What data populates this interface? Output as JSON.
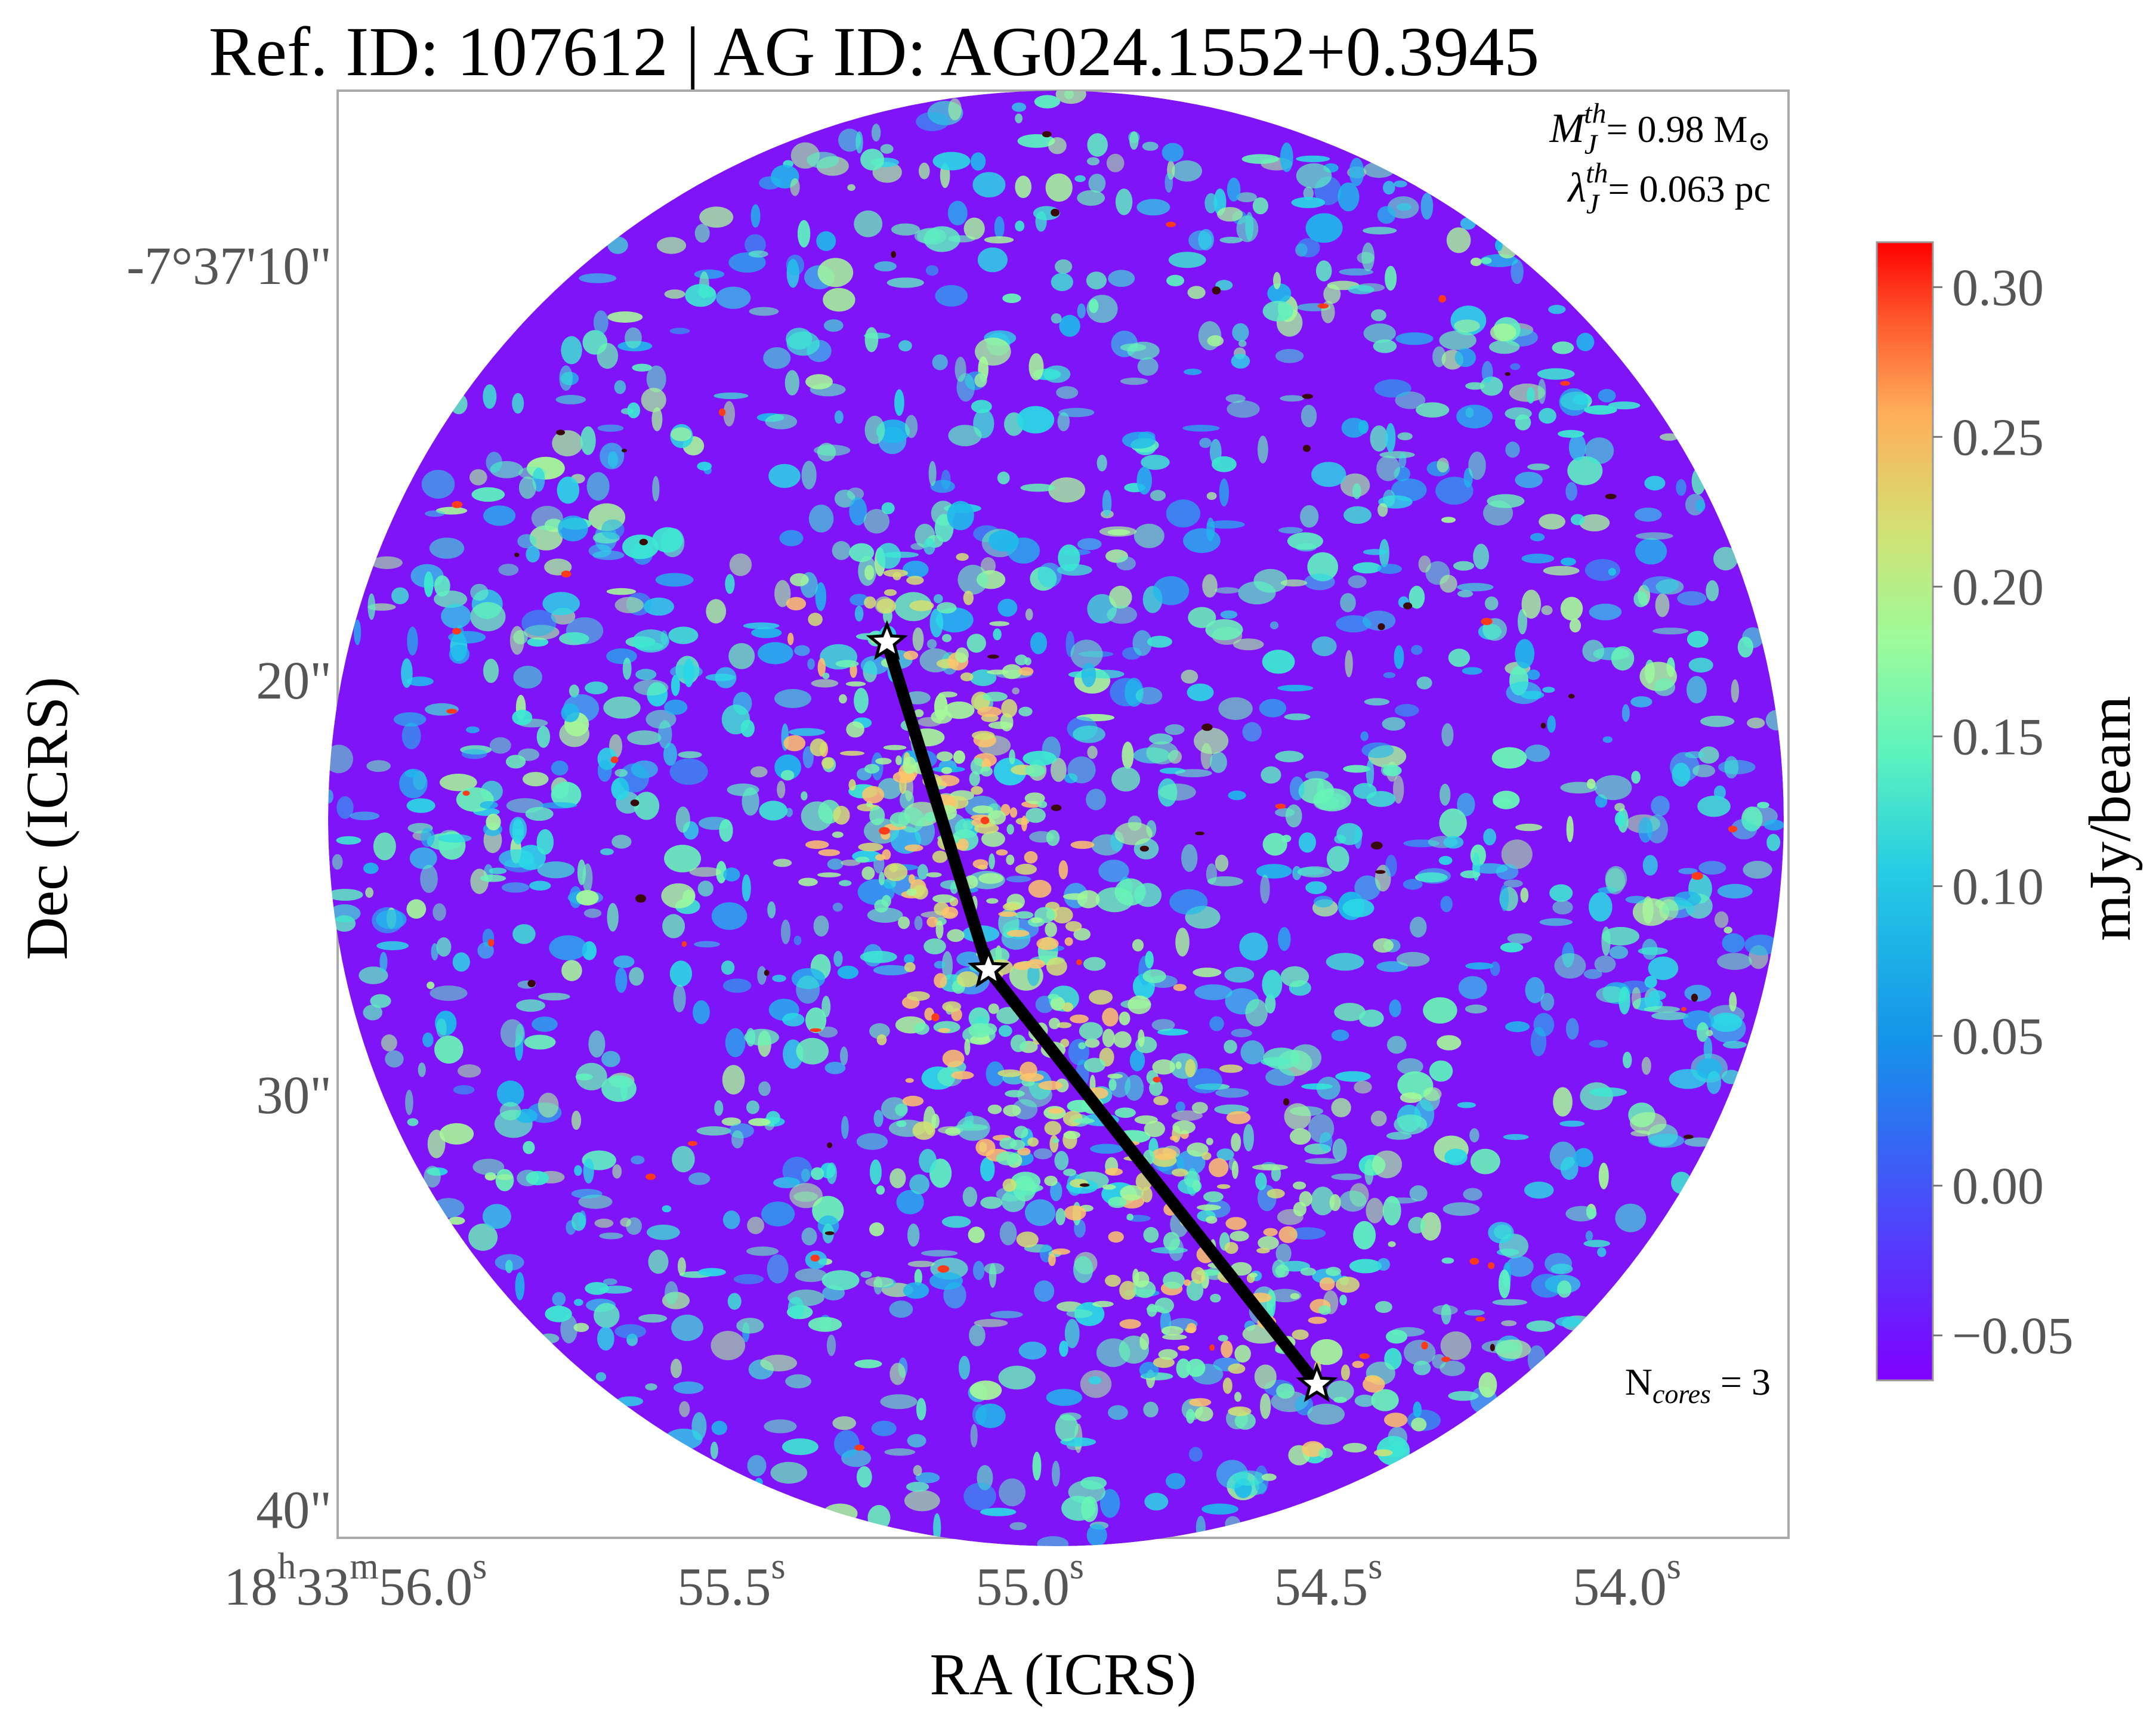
{
  "chart_data": {
    "type": "heatmap",
    "title": "Ref. ID: 107612 | AG ID: AG024.1552+0.3945",
    "xlabel": "RA (ICRS)",
    "ylabel": "Dec (ICRS)",
    "x_ticks": [
      {
        "h": "18",
        "hs": "h",
        "m": "33",
        "ms": "m",
        "s": "56.0",
        "ss": "s",
        "seconds": 56.0
      },
      {
        "s": "55.5",
        "ss": "s",
        "seconds": 55.5
      },
      {
        "s": "55.0",
        "ss": "s",
        "seconds": 55.0
      },
      {
        "s": "54.5",
        "ss": "s",
        "seconds": 54.5
      },
      {
        "s": "54.0",
        "ss": "s",
        "seconds": 54.0
      }
    ],
    "y_ticks": [
      {
        "label": "-7°37'10\"",
        "arcsec": 10
      },
      {
        "label": "20\"",
        "arcsec": 20
      },
      {
        "label": "30\"",
        "arcsec": 30
      },
      {
        "label": "40\"",
        "arcsec": 40
      }
    ],
    "xlim_seconds": [
      56.25,
      53.82
    ],
    "ylim_arcsec": [
      5.8,
      40.7
    ],
    "colorbar": {
      "label": "mJy/beam",
      "vmin": -0.065,
      "vmax": 0.315,
      "ticks": [
        "0.30",
        "0.25",
        "0.20",
        "0.15",
        "0.10",
        "0.05",
        "0.00",
        "−0.05"
      ],
      "tick_values": [
        0.3,
        0.25,
        0.2,
        0.15,
        0.1,
        0.05,
        0.0,
        -0.05
      ],
      "colormap": "rainbow"
    },
    "cores": [
      {
        "ra_s": 55.33,
        "dec_arcsec": 19.1
      },
      {
        "ra_s": 55.16,
        "dec_arcsec": 27.0
      },
      {
        "ra_s": 54.61,
        "dec_arcsec": 37.0
      }
    ],
    "mst_edges": [
      [
        0,
        1
      ],
      [
        1,
        2
      ]
    ],
    "annotations": {
      "mj_symbol": "M",
      "mj_sub": "J",
      "mj_sup": "th",
      "mj_value": "= 0.98 M",
      "mj_sun": "⊙",
      "lj_symbol": "λ",
      "lj_sub": "J",
      "lj_sup": "th",
      "lj_value": "= 0.063 pc",
      "ncores_prefix": "N",
      "ncores_sub": "cores",
      "ncores_value": " = 3"
    },
    "colors": {
      "low": "#8000ff",
      "mid": "#2adddd",
      "high": "#ff0000",
      "line": "#000000",
      "frame": "#aaaaaa"
    }
  }
}
